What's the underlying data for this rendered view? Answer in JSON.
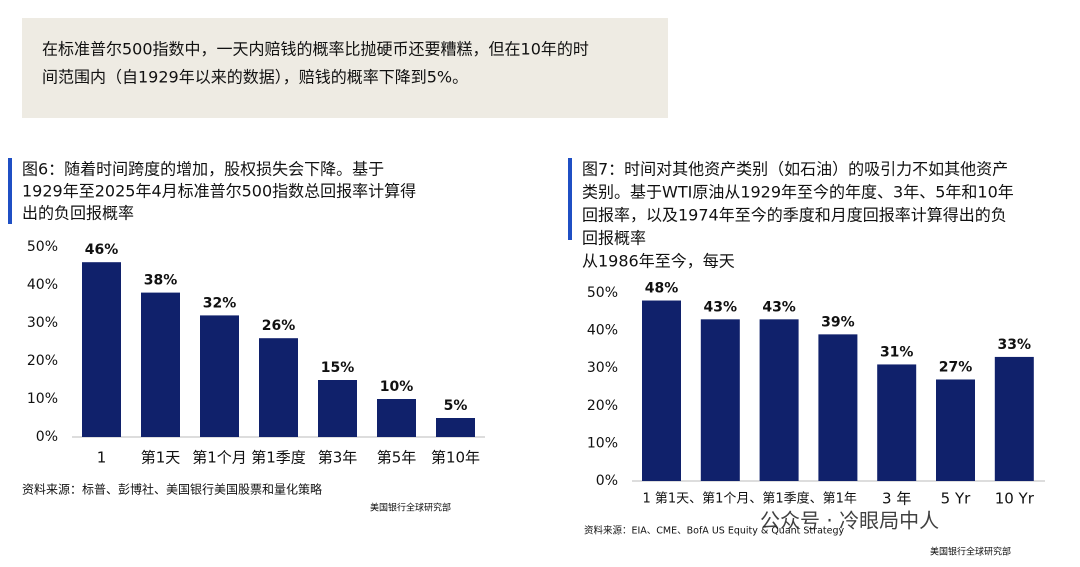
{
  "header": {
    "text_lines": [
      "在标准普尔500指数中，一天内赔钱的概率比抛硬币还要糟糕，但在10年的时",
      "间范围内（自1929年以来的数据），赔钱的概率下降到5%。"
    ]
  },
  "chart_data": [
    {
      "type": "bar",
      "title_lines": [
        "图6：随着时间跨度的增加，股权损失会下降。基于",
        "1929年至2025年4月标准普尔500指数总回报率计算得",
        "出的负回报概率"
      ],
      "categories": [
        "1",
        "第1天",
        "第1个月",
        "第1季度",
        "第3年",
        "第5年",
        "第10年"
      ],
      "values": [
        46,
        38,
        32,
        26,
        15,
        10,
        5
      ],
      "value_labels": [
        "46%",
        "38%",
        "32%",
        "26%",
        "15%",
        "10%",
        "5%"
      ],
      "color": "#10216b",
      "ylim": [
        0,
        50
      ],
      "yticks": [
        {
          "value": 0,
          "label": "0%"
        },
        {
          "value": 10,
          "label": "10%"
        },
        {
          "value": 20,
          "label": "20%"
        },
        {
          "value": 30,
          "label": "30%"
        },
        {
          "value": 40,
          "label": "40%"
        },
        {
          "value": 50,
          "label": "50%"
        }
      ],
      "source": "资料来源：标普、彭博社、美国银行美国股票和量化策略",
      "credit": "美国银行全球研究部"
    },
    {
      "type": "bar",
      "title_lines": [
        "图7：时间对其他资产类别（如石油）的吸引力不如其他资产",
        "类别。基于WTI原油从1929年至今的年度、3年、5年和10年",
        "回报率，以及1974年至今的季度和月度回报率计算得出的负",
        "回报概率"
      ],
      "subtitle": "从1986年至今，每天",
      "categories": [
        "1 第1天、第1个月、第1季度、第1年",
        null,
        null,
        null,
        "3 年",
        "5 Yr",
        "10 Yr"
      ],
      "values": [
        48,
        43,
        43,
        39,
        31,
        27,
        33
      ],
      "value_labels": [
        "48%",
        "43%",
        "43%",
        "39%",
        "31%",
        "27%",
        "33%"
      ],
      "color": "#10216b",
      "ylim": [
        0,
        50
      ],
      "yticks": [
        {
          "value": 0,
          "label": "0%"
        },
        {
          "value": 10,
          "label": "10%"
        },
        {
          "value": 20,
          "label": "20%"
        },
        {
          "value": 30,
          "label": "30%"
        },
        {
          "value": 40,
          "label": "40%"
        },
        {
          "value": 50,
          "label": "50%"
        }
      ],
      "source": "资料来源：EIA、CME、BofA US Equity & Quant Strategy",
      "watermark": "公众号 · 冷眼局中人",
      "credit": "美国银行全球研究部"
    }
  ]
}
